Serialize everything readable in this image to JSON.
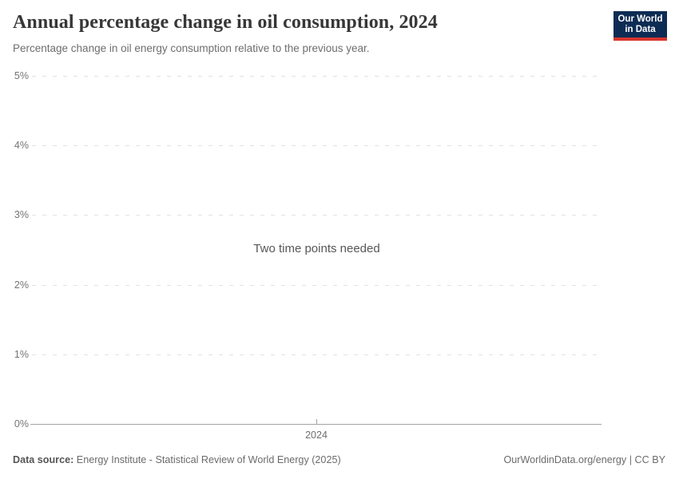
{
  "header": {
    "title": "Annual percentage change in oil consumption, 2024",
    "subtitle": "Percentage change in oil energy consumption relative to the previous year.",
    "logo": {
      "line1": "Our World",
      "line2": "in Data",
      "bg_color": "#0d2c54",
      "stripe_color": "#d7352c"
    }
  },
  "chart_data": {
    "type": "line",
    "title": "Annual percentage change in oil consumption, 2024",
    "series": [],
    "x": [],
    "x_tick_labels": [
      "2024"
    ],
    "y_tick_labels": [
      "0%",
      "1%",
      "2%",
      "3%",
      "4%",
      "5%"
    ],
    "ylim": [
      0,
      5
    ],
    "xlabel": "",
    "ylabel": "",
    "grid": true,
    "gridline_color": "#e2e2e2",
    "axis_color": "#a3a3a3",
    "empty_state_message": "Two time points needed"
  },
  "footer": {
    "source_label": "Data source:",
    "source_text": " Energy Institute - Statistical Review of World Energy (2025)",
    "attribution": "OurWorldinData.org/energy | CC BY"
  }
}
